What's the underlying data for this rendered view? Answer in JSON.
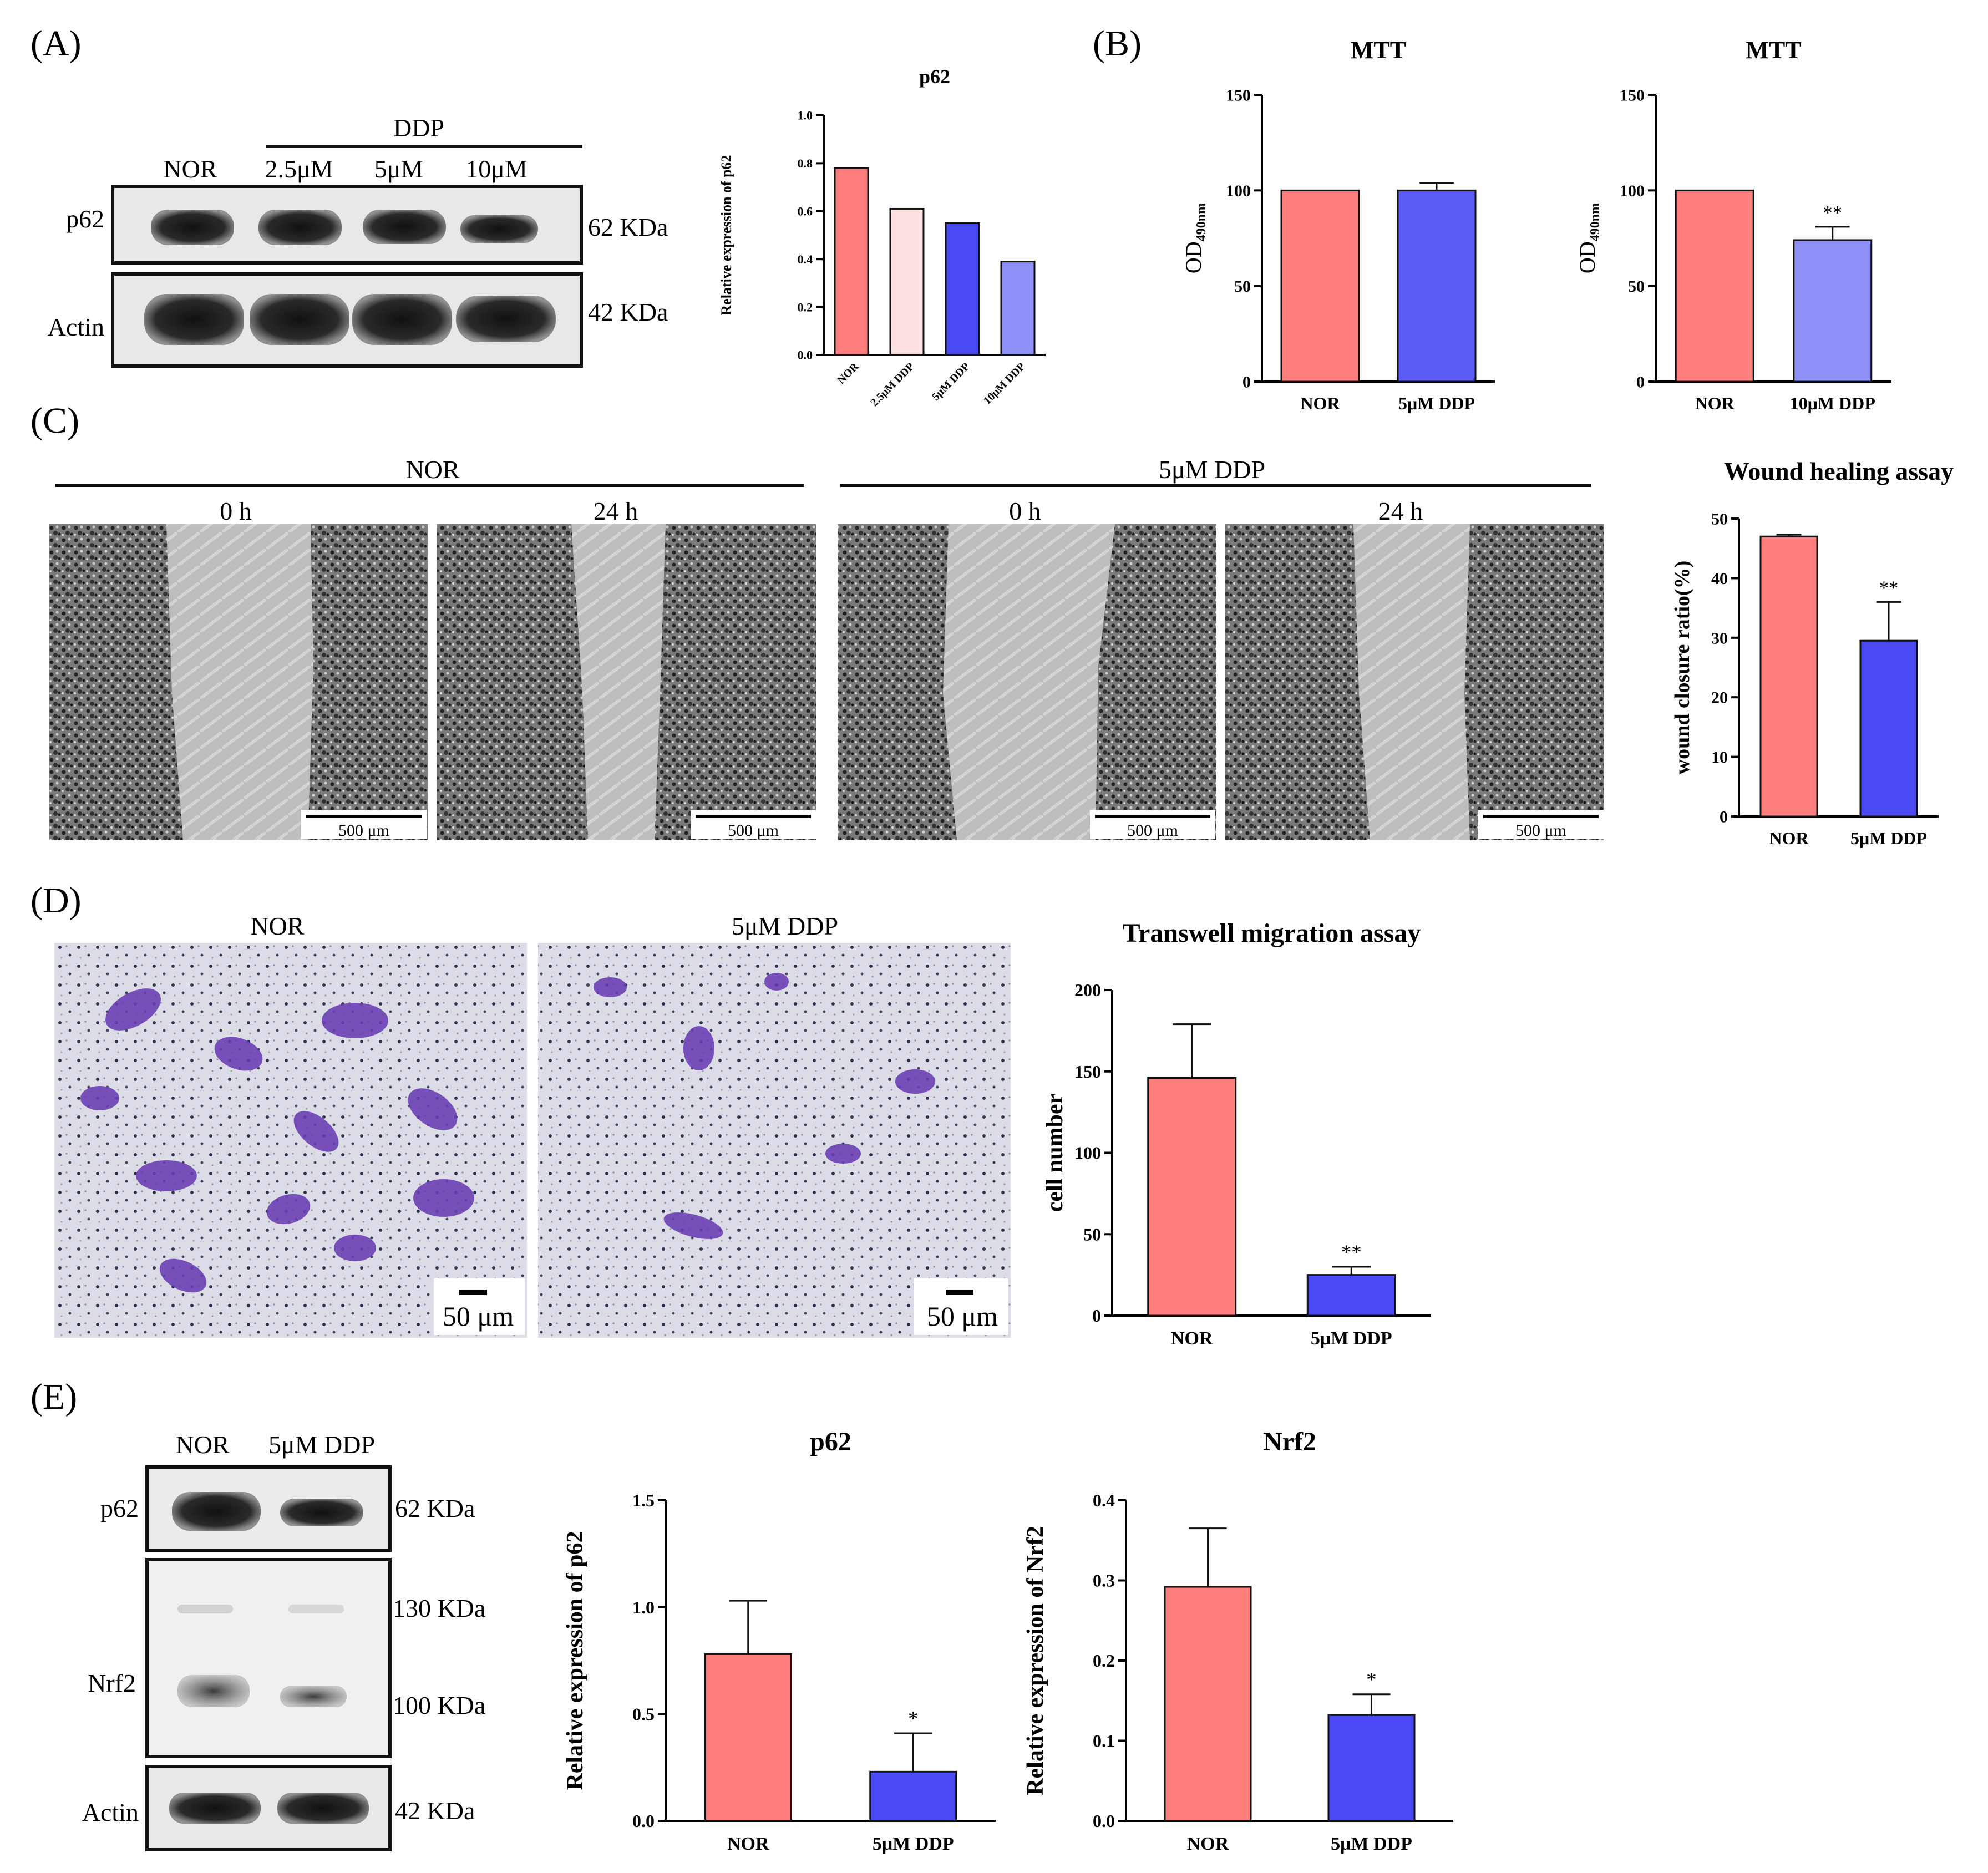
{
  "panels": {
    "A": {
      "letter": "(A)",
      "blot": {
        "treatment_label": "DDP",
        "lanes": [
          "NOR",
          "2.5μM",
          "5μM",
          "10μM"
        ],
        "rows": [
          {
            "name": "p62",
            "size": "62 KDa"
          },
          {
            "name": "Actin",
            "size": "42 KDa"
          }
        ]
      }
    },
    "B": {
      "letter": "(B)"
    },
    "C": {
      "letter": "(C)",
      "groups": [
        "NOR",
        "5μM DDP"
      ],
      "times": [
        "0 h",
        "24 h",
        "0 h",
        "24 h"
      ],
      "scale_bar": "500 μm"
    },
    "D": {
      "letter": "(D)",
      "groups": [
        "NOR",
        "5μM DDP"
      ],
      "scale_bar": "50 μm"
    },
    "E": {
      "letter": "(E)",
      "blot": {
        "lanes": [
          "NOR",
          "5μM DDP"
        ],
        "rows": [
          {
            "name": "p62",
            "sizes": [
              "62 KDa"
            ]
          },
          {
            "name": "Nrf2",
            "sizes": [
              "130 KDa",
              "100 KDa"
            ]
          },
          {
            "name": "Actin",
            "sizes": [
              "42 KDa"
            ]
          }
        ]
      }
    }
  },
  "chart_data": [
    {
      "id": "A_p62",
      "type": "bar",
      "title": "p62",
      "xlabel": "",
      "ylabel": "Relative expression of p62",
      "categories": [
        "NOR",
        "2.5μM DDP",
        "5μM DDP",
        "10μM DDP"
      ],
      "values": [
        0.78,
        0.61,
        0.55,
        0.39
      ],
      "errors": [
        0,
        0,
        0,
        0
      ],
      "colors": [
        "#ff7f7f",
        "#fde0e0",
        "#4a4af5",
        "#8f8ff8"
      ],
      "significance": [
        "",
        "",
        "",
        ""
      ],
      "ylim": [
        0,
        1.0
      ],
      "yticks": [
        "0.0",
        "0.2",
        "0.4",
        "0.6",
        "0.8",
        "1.0"
      ]
    },
    {
      "id": "B_mtt5",
      "type": "bar",
      "title": "MTT",
      "xlabel": "",
      "ylabel_main": "OD",
      "ylabel_sub": "490nm",
      "categories": [
        "NOR",
        "5μM DDP"
      ],
      "values": [
        100,
        100
      ],
      "errors": [
        0,
        4
      ],
      "colors": [
        "#ff7f7f",
        "#5a5af5"
      ],
      "significance": [
        "",
        ""
      ],
      "ylim": [
        0,
        150
      ],
      "yticks": [
        "0",
        "50",
        "100",
        "150"
      ]
    },
    {
      "id": "B_mtt10",
      "type": "bar",
      "title": "MTT",
      "xlabel": "",
      "ylabel_main": "OD",
      "ylabel_sub": "490nm",
      "categories": [
        "NOR",
        "10μM DDP"
      ],
      "values": [
        100,
        74
      ],
      "errors": [
        0,
        7
      ],
      "colors": [
        "#ff7f7f",
        "#8f8ff8"
      ],
      "significance": [
        "",
        "**"
      ],
      "ylim": [
        0,
        150
      ],
      "yticks": [
        "0",
        "50",
        "100",
        "150"
      ]
    },
    {
      "id": "C_wound",
      "type": "bar",
      "title": "Wound healing assay",
      "xlabel": "",
      "ylabel": "wound closure ratio(%)",
      "categories": [
        "NOR",
        "5μM DDP"
      ],
      "values": [
        47,
        29.5
      ],
      "errors": [
        0.3,
        6.5
      ],
      "colors": [
        "#ff7f7f",
        "#4a4af5"
      ],
      "significance": [
        "",
        "**"
      ],
      "ylim": [
        0,
        50
      ],
      "yticks": [
        "0",
        "10",
        "20",
        "30",
        "40",
        "50"
      ]
    },
    {
      "id": "D_transwell",
      "type": "bar",
      "title": "Transwell migration assay",
      "xlabel": "",
      "ylabel": "cell number",
      "categories": [
        "NOR",
        "5μM DDP"
      ],
      "values": [
        146,
        25
      ],
      "errors": [
        33,
        5
      ],
      "colors": [
        "#ff7f7f",
        "#4a4af5"
      ],
      "significance": [
        "",
        "**"
      ],
      "ylim": [
        0,
        200
      ],
      "yticks": [
        "0",
        "50",
        "100",
        "150",
        "200"
      ]
    },
    {
      "id": "E_p62",
      "type": "bar",
      "title": "p62",
      "xlabel": "",
      "ylabel": "Relative expression of p62",
      "categories": [
        "NOR",
        "5μM DDP"
      ],
      "values": [
        0.78,
        0.23
      ],
      "errors": [
        0.25,
        0.18
      ],
      "colors": [
        "#ff7f7f",
        "#4a4af5"
      ],
      "significance": [
        "",
        "*"
      ],
      "ylim": [
        0,
        1.5
      ],
      "yticks": [
        "0.0",
        "0.5",
        "1.0",
        "1.5"
      ]
    },
    {
      "id": "E_nrf2",
      "type": "bar",
      "title": "Nrf2",
      "xlabel": "",
      "ylabel": "Relative expression of Nrf2",
      "categories": [
        "NOR",
        "5μM DDP"
      ],
      "values": [
        0.292,
        0.132
      ],
      "errors": [
        0.073,
        0.026
      ],
      "colors": [
        "#ff7f7f",
        "#4a4af5"
      ],
      "significance": [
        "",
        "*"
      ],
      "ylim": [
        0,
        0.4
      ],
      "yticks": [
        "0.0",
        "0.1",
        "0.2",
        "0.3",
        "0.4"
      ]
    }
  ]
}
